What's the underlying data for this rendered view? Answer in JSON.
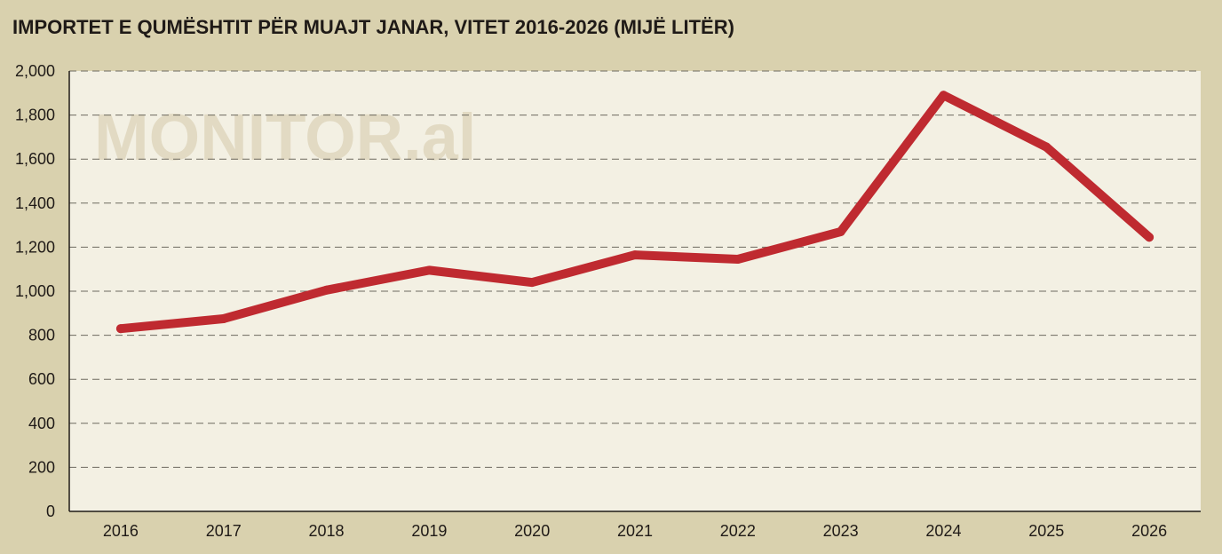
{
  "title": "IMPORTET E QUMËSHTIT PËR MUAJT JANAR, VITET 2016-2026 (MIJË LITËR)",
  "watermark": "MONITOR.al",
  "colors": {
    "background": "#d9d1ae",
    "plot_background": "#f3f0e3",
    "line": "#bf2a30",
    "grid": "#6e6a60",
    "text": "#1f1a17",
    "watermark": "#e2dac3"
  },
  "chart_data": {
    "type": "line",
    "title": "IMPORTET E QUMËSHTIT PËR MUAJT JANAR, VITET 2016-2026 (MIJË LITËR)",
    "xlabel": "",
    "ylabel": "",
    "categories": [
      "2016",
      "2017",
      "2018",
      "2019",
      "2020",
      "2021",
      "2022",
      "2023",
      "2024",
      "2025",
      "2026"
    ],
    "values": [
      830,
      875,
      1005,
      1095,
      1040,
      1165,
      1145,
      1270,
      1890,
      1655,
      1245
    ],
    "ylim": [
      0,
      2000
    ],
    "yticks": [
      "0",
      "200",
      "400",
      "600",
      "800",
      "1,000",
      "1,200",
      "1,400",
      "1,600",
      "1,800",
      "2,000"
    ],
    "grid": "horizontal dashed",
    "legend": "none"
  }
}
